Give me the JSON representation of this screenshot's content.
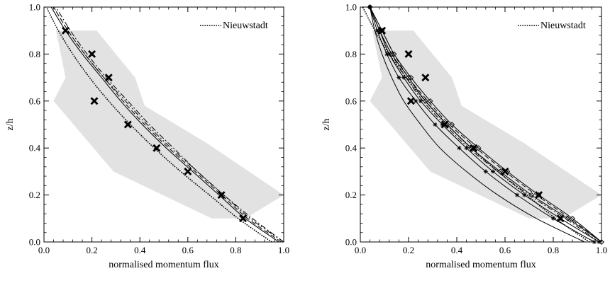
{
  "chart_data": [
    {
      "type": "line",
      "xlabel": "normalised momentum flux",
      "ylabel": "z/h",
      "xlim": [
        0,
        1
      ],
      "ylim": [
        0,
        1
      ],
      "xticks": [
        "0.0",
        "0.2",
        "0.4",
        "0.6",
        "0.8",
        "1.0"
      ],
      "yticks": [
        "0.0",
        "0.2",
        "0.4",
        "0.6",
        "0.8",
        "1.0"
      ],
      "legend": {
        "label": "Nieuwstadt",
        "position": "top-right",
        "style": "dotted"
      },
      "shaded_range": [
        {
          "x": 0.84,
          "y": 0.1
        },
        {
          "x": 1.0,
          "y": 0.2
        },
        {
          "x": 0.68,
          "y": 0.42
        },
        {
          "x": 0.42,
          "y": 0.58
        },
        {
          "x": 0.38,
          "y": 0.7
        },
        {
          "x": 0.22,
          "y": 0.9
        },
        {
          "x": 0.05,
          "y": 0.9
        },
        {
          "x": 0.09,
          "y": 0.7
        },
        {
          "x": 0.04,
          "y": 0.6
        },
        {
          "x": 0.29,
          "y": 0.3
        },
        {
          "x": 0.7,
          "y": 0.1
        }
      ],
      "observations": [
        {
          "x": 0.09,
          "y": 0.9
        },
        {
          "x": 0.2,
          "y": 0.8
        },
        {
          "x": 0.27,
          "y": 0.7
        },
        {
          "x": 0.21,
          "y": 0.6
        },
        {
          "x": 0.35,
          "y": 0.5
        },
        {
          "x": 0.47,
          "y": 0.4
        },
        {
          "x": 0.6,
          "y": 0.3
        },
        {
          "x": 0.74,
          "y": 0.2
        },
        {
          "x": 0.83,
          "y": 0.1
        }
      ],
      "series": [
        {
          "style": "solid",
          "y": [
            0.0,
            0.1,
            0.2,
            0.3,
            0.4,
            0.5,
            0.6,
            0.7,
            0.8,
            0.9,
            1.0
          ],
          "values": [
            0.98,
            0.84,
            0.73,
            0.62,
            0.51,
            0.41,
            0.32,
            0.24,
            0.16,
            0.09,
            0.03
          ]
        },
        {
          "style": "dashed",
          "y": [
            0.0,
            0.1,
            0.2,
            0.3,
            0.4,
            0.5,
            0.6,
            0.7,
            0.8,
            0.9,
            1.0
          ],
          "values": [
            0.99,
            0.85,
            0.74,
            0.63,
            0.52,
            0.42,
            0.33,
            0.25,
            0.17,
            0.1,
            0.04
          ]
        },
        {
          "style": "dash-dot",
          "y": [
            0.0,
            0.1,
            0.2,
            0.3,
            0.4,
            0.5,
            0.6,
            0.7,
            0.8,
            0.9,
            1.0
          ],
          "values": [
            1.0,
            0.87,
            0.75,
            0.64,
            0.54,
            0.44,
            0.35,
            0.26,
            0.18,
            0.11,
            0.05
          ]
        },
        {
          "style": "dash-dot-dot",
          "y": [
            0.0,
            0.1,
            0.2,
            0.3,
            0.4,
            0.5,
            0.6,
            0.7,
            0.8,
            0.9,
            1.0
          ],
          "values": [
            1.0,
            0.86,
            0.75,
            0.64,
            0.53,
            0.43,
            0.34,
            0.25,
            0.17,
            0.1,
            0.04
          ]
        },
        {
          "style": "dotted",
          "y": [
            0.0,
            0.1,
            0.2,
            0.3,
            0.4,
            0.5,
            0.6,
            0.7,
            0.8,
            0.9,
            1.0
          ],
          "values": [
            0.95,
            0.81,
            0.69,
            0.57,
            0.46,
            0.36,
            0.27,
            0.19,
            0.12,
            0.06,
            0.01
          ]
        }
      ]
    },
    {
      "type": "line",
      "xlabel": "normalised momentum flux",
      "ylabel": "z/h",
      "xlim": [
        0,
        1
      ],
      "ylim": [
        0,
        1
      ],
      "xticks": [
        "0.0",
        "0.2",
        "0.4",
        "0.6",
        "0.8",
        "1.0"
      ],
      "yticks": [
        "0.0",
        "0.2",
        "0.4",
        "0.6",
        "0.8",
        "1.0"
      ],
      "legend": {
        "label": "Nieuwstadt",
        "position": "top-right",
        "style": "dotted"
      },
      "shaded_range": [
        {
          "x": 0.84,
          "y": 0.1
        },
        {
          "x": 1.0,
          "y": 0.2
        },
        {
          "x": 0.68,
          "y": 0.42
        },
        {
          "x": 0.42,
          "y": 0.58
        },
        {
          "x": 0.38,
          "y": 0.7
        },
        {
          "x": 0.22,
          "y": 0.9
        },
        {
          "x": 0.05,
          "y": 0.9
        },
        {
          "x": 0.09,
          "y": 0.7
        },
        {
          "x": 0.04,
          "y": 0.6
        },
        {
          "x": 0.29,
          "y": 0.3
        },
        {
          "x": 0.7,
          "y": 0.1
        }
      ],
      "observations": [
        {
          "x": 0.09,
          "y": 0.9
        },
        {
          "x": 0.2,
          "y": 0.8
        },
        {
          "x": 0.27,
          "y": 0.7
        },
        {
          "x": 0.21,
          "y": 0.6
        },
        {
          "x": 0.35,
          "y": 0.5
        },
        {
          "x": 0.47,
          "y": 0.4
        },
        {
          "x": 0.6,
          "y": 0.3
        },
        {
          "x": 0.74,
          "y": 0.2
        },
        {
          "x": 0.83,
          "y": 0.1
        }
      ],
      "series": [
        {
          "style": "solid",
          "marker": "none",
          "y": [
            0.0,
            0.1,
            0.2,
            0.3,
            0.4,
            0.5,
            0.6,
            0.7,
            0.8,
            0.9,
            1.0
          ],
          "values": [
            0.93,
            0.73,
            0.57,
            0.44,
            0.33,
            0.25,
            0.18,
            0.13,
            0.09,
            0.06,
            0.04
          ]
        },
        {
          "style": "solid",
          "marker": "asterisk",
          "y": [
            0.0,
            0.1,
            0.2,
            0.3,
            0.4,
            0.5,
            0.6,
            0.7,
            0.8,
            0.9,
            1.0
          ],
          "values": [
            0.97,
            0.8,
            0.65,
            0.52,
            0.41,
            0.31,
            0.23,
            0.16,
            0.11,
            0.07,
            0.04
          ]
        },
        {
          "style": "solid",
          "marker": "asterisk",
          "y": [
            0.0,
            0.1,
            0.2,
            0.3,
            0.4,
            0.5,
            0.6,
            0.7,
            0.8,
            0.9,
            1.0
          ],
          "values": [
            0.99,
            0.83,
            0.68,
            0.55,
            0.44,
            0.34,
            0.25,
            0.18,
            0.12,
            0.08,
            0.04
          ]
        },
        {
          "style": "solid",
          "marker": "diamond",
          "y": [
            0.0,
            0.1,
            0.2,
            0.3,
            0.4,
            0.5,
            0.6,
            0.7,
            0.8,
            0.9,
            1.0
          ],
          "values": [
            1.0,
            0.86,
            0.71,
            0.58,
            0.46,
            0.36,
            0.27,
            0.2,
            0.13,
            0.08,
            0.04
          ]
        },
        {
          "style": "solid",
          "marker": "diamond",
          "y": [
            0.0,
            0.1,
            0.2,
            0.3,
            0.4,
            0.5,
            0.6,
            0.7,
            0.8,
            0.9,
            1.0
          ],
          "values": [
            1.0,
            0.88,
            0.74,
            0.61,
            0.49,
            0.38,
            0.29,
            0.21,
            0.14,
            0.09,
            0.04
          ]
        },
        {
          "style": "dashed",
          "marker": "none",
          "y": [
            0.0,
            0.1,
            0.2,
            0.3,
            0.4,
            0.5,
            0.6,
            0.7,
            0.8,
            0.9,
            1.0
          ],
          "values": [
            1.0,
            0.87,
            0.73,
            0.6,
            0.48,
            0.37,
            0.28,
            0.2,
            0.14,
            0.09,
            0.04
          ]
        },
        {
          "style": "dash-dot",
          "marker": "none",
          "y": [
            0.0,
            0.1,
            0.2,
            0.3,
            0.4,
            0.5,
            0.6,
            0.7,
            0.8,
            0.9,
            1.0
          ],
          "values": [
            0.99,
            0.85,
            0.7,
            0.57,
            0.45,
            0.35,
            0.26,
            0.19,
            0.13,
            0.08,
            0.04
          ]
        },
        {
          "style": "dotted",
          "marker": "none",
          "y": [
            0.0,
            0.1,
            0.2,
            0.3,
            0.4,
            0.5,
            0.6,
            0.7,
            0.8,
            0.9,
            1.0
          ],
          "values": [
            0.95,
            0.81,
            0.69,
            0.57,
            0.46,
            0.36,
            0.27,
            0.19,
            0.12,
            0.06,
            0.01
          ]
        }
      ]
    }
  ]
}
